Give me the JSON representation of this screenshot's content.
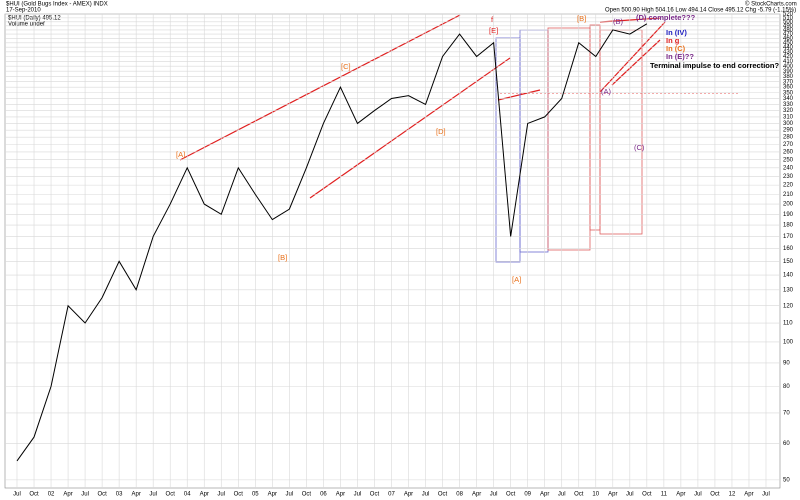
{
  "chart_data": {
    "type": "line",
    "title": "$HUI (Gold Bugs Index - AMEX) INDX",
    "date": "17-Sep-2010",
    "quote": "Open 500.90 High 504.16 Low 494.14 Close 495.12 Chg -5.79 (-1.15%)",
    "legend_label": "$HUI (Daily) 495.12",
    "volume_label": "Volume undef",
    "credit": "© StockCharts.com",
    "categories": [
      "Jul",
      "Oct",
      "02",
      "Apr",
      "Jul",
      "Oct",
      "03",
      "Apr",
      "Jul",
      "Oct",
      "04",
      "Apr",
      "Jul",
      "Oct",
      "05",
      "Apr",
      "Jul",
      "Oct",
      "06",
      "Apr",
      "Jul",
      "Oct",
      "07",
      "Apr",
      "Jul",
      "Oct",
      "08",
      "Apr",
      "Jul",
      "Oct",
      "09",
      "Apr",
      "Jul",
      "Oct",
      "10",
      "Apr",
      "Jul",
      "Oct",
      "11",
      "Apr",
      "Jul",
      "Oct",
      "12",
      "Apr",
      "Jul"
    ],
    "series": [
      {
        "name": "$HUI",
        "color": "#000000",
        "values": [
          55,
          62,
          80,
          120,
          110,
          125,
          150,
          130,
          170,
          200,
          240,
          200,
          190,
          240,
          210,
          185,
          195,
          240,
          300,
          360,
          300,
          320,
          340,
          345,
          330,
          420,
          470,
          420,
          450,
          170,
          300,
          310,
          340,
          450,
          420,
          480,
          470,
          495,
          null,
          null,
          null,
          null,
          null,
          null,
          null
        ]
      }
    ],
    "log_scale": true,
    "grid": true,
    "ylim": [
      48,
      520
    ],
    "yticks": [
      50,
      60,
      70,
      80,
      90,
      100,
      110,
      120,
      130,
      140,
      150,
      160,
      170,
      180,
      190,
      200,
      210,
      220,
      230,
      240,
      250,
      260,
      270,
      280,
      290,
      300,
      310,
      320,
      330,
      340,
      350,
      360,
      370,
      380,
      390,
      400,
      410,
      420,
      430,
      440,
      450,
      460,
      470,
      480,
      490,
      500,
      510,
      520
    ],
    "annotations": [
      {
        "text": "[A]",
        "color": "#e8701a"
      },
      {
        "text": "[B]",
        "color": "#e8701a"
      },
      {
        "text": "[C]",
        "color": "#e8701a"
      },
      {
        "text": "[D]",
        "color": "#e8701a"
      },
      {
        "text": "[E]",
        "color": "#e02020"
      },
      {
        "text": "f",
        "color": "#e02020"
      },
      {
        "text": "[A]",
        "color": "#e8701a"
      },
      {
        "text": "[B]",
        "color": "#e8701a"
      },
      {
        "text": "(A)",
        "color": "#7a2a8a"
      },
      {
        "text": "(B)",
        "color": "#7a2a8a"
      },
      {
        "text": "(C)",
        "color": "#7a2a8a"
      },
      {
        "text": "(D) complete???",
        "color": "#7a2a8a"
      },
      {
        "text": "In (IV)",
        "color": "#2020c0"
      },
      {
        "text": "In g",
        "color": "#e02020"
      },
      {
        "text": "In (C)",
        "color": "#e8701a"
      },
      {
        "text": "In (E)??",
        "color": "#7a2a8a"
      },
      {
        "text": "Terminal impulse to end correction?",
        "color": "#000000"
      }
    ]
  }
}
